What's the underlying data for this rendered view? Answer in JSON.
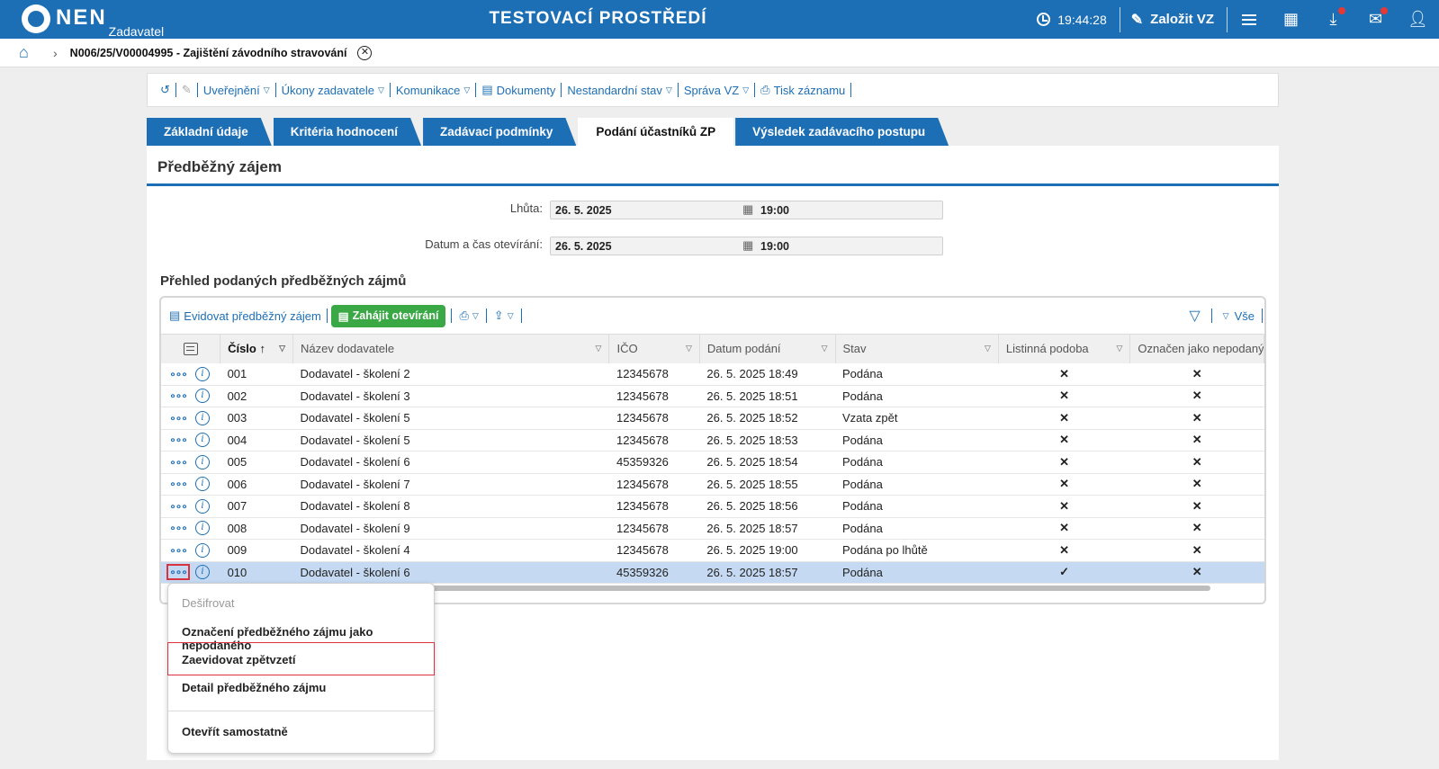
{
  "app": {
    "logo_text": "NEN",
    "logo_subtitle": "Zadavatel",
    "environment_title": "TESTOVACÍ PROSTŘEDÍ",
    "clock": "19:44:28",
    "create_label": "Založit VZ"
  },
  "breadcrumb": {
    "current": "N006/25/V00004995 - Zajištění závodního stravování"
  },
  "actions": {
    "publish": "Uveřejnění",
    "acts": "Úkony zadavatele",
    "communication": "Komunikace",
    "documents": "Dokumenty",
    "nonstandard": "Nestandardní stav",
    "admin": "Správa VZ",
    "print": "Tisk záznamu"
  },
  "tabs": [
    {
      "label": "Základní údaje"
    },
    {
      "label": "Kritéria hodnocení"
    },
    {
      "label": "Zadávací podmínky"
    },
    {
      "label": "Podání účastníků ZP"
    },
    {
      "label": "Výsledek zadávacího postupu"
    }
  ],
  "panel": {
    "title": "Předběžný zájem",
    "deadline_label": "Lhůta:",
    "deadline_date": "26. 5. 2025",
    "deadline_time": "19:00",
    "opening_label": "Datum a čas otevírání:",
    "opening_date": "26. 5. 2025",
    "opening_time": "19:00",
    "section_title": "Přehled podaných předběžných zájmů"
  },
  "grid_toolbar": {
    "register_label": "Evidovat předběžný zájem",
    "start_opening_label": "Zahájit otevírání",
    "all_label": "Vše"
  },
  "columns": [
    "Číslo",
    "Název dodavatele",
    "IČO",
    "Datum podání",
    "Stav",
    "Listinná podoba",
    "Označen jako nepodaný"
  ],
  "rows": [
    {
      "cislo": "001",
      "nazev": "Dodavatel - školení 2",
      "ico": "12345678",
      "datum": "26. 5. 2025 18:49",
      "stav": "Podána",
      "listinna": false,
      "nepodany": false
    },
    {
      "cislo": "002",
      "nazev": "Dodavatel - školení 3",
      "ico": "12345678",
      "datum": "26. 5. 2025 18:51",
      "stav": "Podána",
      "listinna": false,
      "nepodany": false
    },
    {
      "cislo": "003",
      "nazev": "Dodavatel - školení 5",
      "ico": "12345678",
      "datum": "26. 5. 2025 18:52",
      "stav": "Vzata zpět",
      "listinna": false,
      "nepodany": false
    },
    {
      "cislo": "004",
      "nazev": "Dodavatel - školení 5",
      "ico": "12345678",
      "datum": "26. 5. 2025 18:53",
      "stav": "Podána",
      "listinna": false,
      "nepodany": false
    },
    {
      "cislo": "005",
      "nazev": "Dodavatel - školení 6",
      "ico": "45359326",
      "datum": "26. 5. 2025 18:54",
      "stav": "Podána",
      "listinna": false,
      "nepodany": false
    },
    {
      "cislo": "006",
      "nazev": "Dodavatel - školení 7",
      "ico": "12345678",
      "datum": "26. 5. 2025 18:55",
      "stav": "Podána",
      "listinna": false,
      "nepodany": false
    },
    {
      "cislo": "007",
      "nazev": "Dodavatel - školení 8",
      "ico": "12345678",
      "datum": "26. 5. 2025 18:56",
      "stav": "Podána",
      "listinna": false,
      "nepodany": false
    },
    {
      "cislo": "008",
      "nazev": "Dodavatel - školení 9",
      "ico": "12345678",
      "datum": "26. 5. 2025 18:57",
      "stav": "Podána",
      "listinna": false,
      "nepodany": false
    },
    {
      "cislo": "009",
      "nazev": "Dodavatel - školení 4",
      "ico": "12345678",
      "datum": "26. 5. 2025 19:00",
      "stav": "Podána po lhůtě",
      "listinna": false,
      "nepodany": false
    },
    {
      "cislo": "010",
      "nazev": "Dodavatel - školení 6",
      "ico": "45359326",
      "datum": "26. 5. 2025 18:57",
      "stav": "Podána",
      "listinna": true,
      "nepodany": false,
      "selected": true
    }
  ],
  "context_menu": {
    "decrypt": "Dešifrovat",
    "mark_unsubmitted": "Označení předběžného zájmu jako nepodaného",
    "register_withdrawal": "Zaevidovat zpětvzetí",
    "detail": "Detail předběžného zájmu",
    "open_standalone": "Otevřít samostatně"
  },
  "colors": {
    "brand": "#1d6fb5",
    "green": "#3aa845",
    "red": "#d9333f",
    "selected_row": "#c5daf2"
  }
}
